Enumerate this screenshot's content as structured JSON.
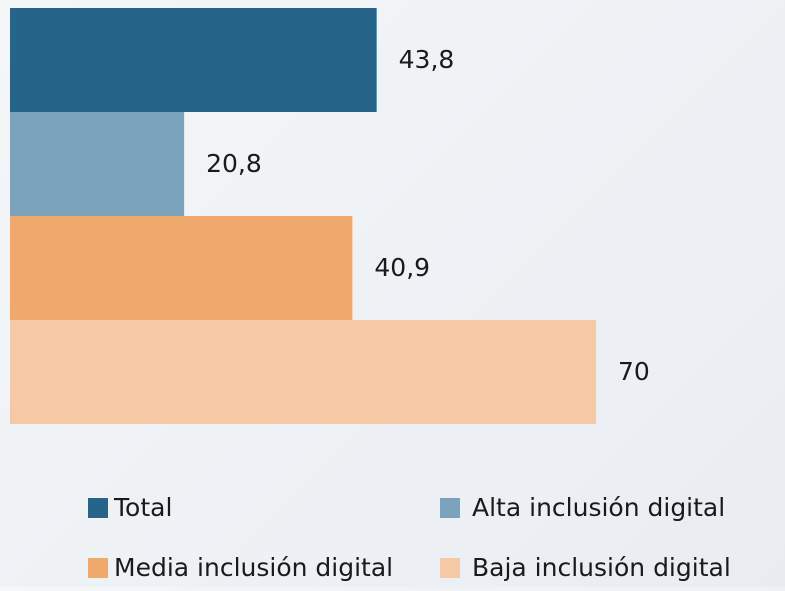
{
  "chart_data": {
    "type": "bar",
    "orientation": "horizontal",
    "series": [
      {
        "name": "Total",
        "color": "#27648a",
        "values": [
          43.8
        ],
        "value_labels": [
          "43,8"
        ]
      },
      {
        "name": "Alta inclusión digital",
        "color": "#7ba3bb",
        "values": [
          20.8
        ],
        "value_labels": [
          "20,8"
        ]
      },
      {
        "name": "Media inclusión digital",
        "color": "#f0a96d",
        "values": [
          40.9
        ],
        "value_labels": [
          "40,9"
        ]
      },
      {
        "name": "Baja inclusión digital",
        "color": "#f6c9a6",
        "values": [
          70
        ],
        "value_labels": [
          "70"
        ]
      }
    ],
    "legend": "bottom"
  }
}
